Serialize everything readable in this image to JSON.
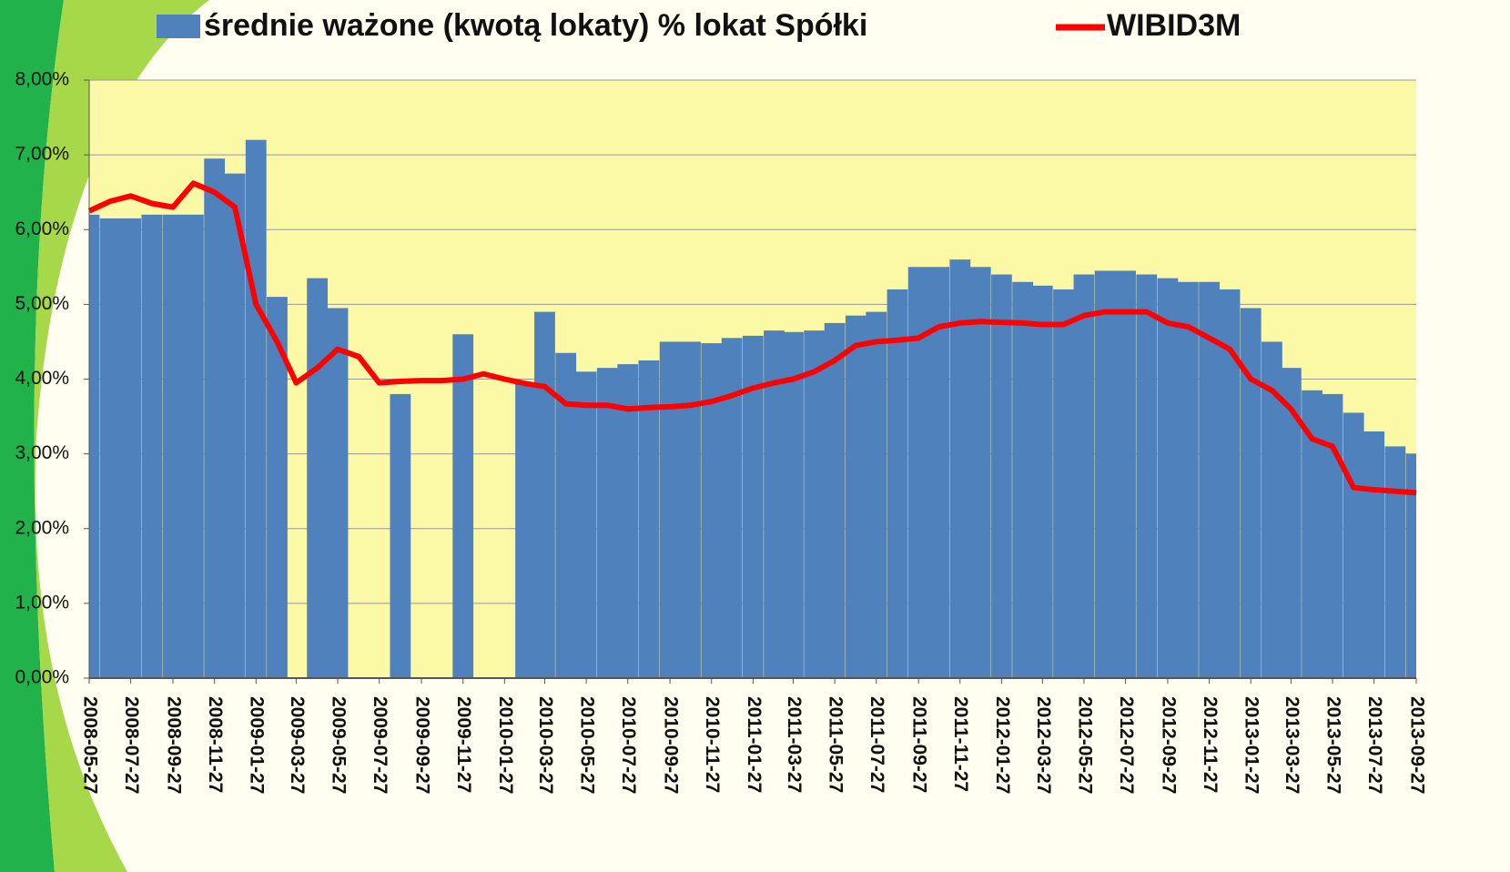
{
  "chart_data": {
    "type": "bar",
    "x": [
      "2008-05-27",
      "2008-06-27",
      "2008-07-27",
      "2008-08-27",
      "2008-09-27",
      "2008-10-27",
      "2008-11-27",
      "2008-12-27",
      "2009-01-27",
      "2009-02-27",
      "2009-03-27",
      "2009-04-27",
      "2009-05-27",
      "2009-06-27",
      "2009-07-27",
      "2009-08-27",
      "2009-09-27",
      "2009-10-27",
      "2009-11-27",
      "2009-12-27",
      "2010-01-27",
      "2010-02-27",
      "2010-03-27",
      "2010-04-27",
      "2010-05-27",
      "2010-06-27",
      "2010-07-27",
      "2010-08-27",
      "2010-09-27",
      "2010-10-27",
      "2010-11-27",
      "2010-12-27",
      "2011-01-27",
      "2011-02-27",
      "2011-03-27",
      "2011-04-27",
      "2011-05-27",
      "2011-06-27",
      "2011-07-27",
      "2011-08-27",
      "2011-09-27",
      "2011-10-27",
      "2011-11-27",
      "2011-12-27",
      "2012-01-27",
      "2012-02-27",
      "2012-03-27",
      "2012-04-27",
      "2012-05-27",
      "2012-06-27",
      "2012-07-27",
      "2012-08-27",
      "2012-09-27",
      "2012-10-27",
      "2012-11-27",
      "2012-12-27",
      "2013-01-27",
      "2013-02-27",
      "2013-03-27",
      "2013-04-27",
      "2013-05-27",
      "2013-06-27",
      "2013-07-27",
      "2013-08-27",
      "2013-09-27"
    ],
    "xlim": [
      "2008-05-27",
      "2013-09-27"
    ],
    "xticks": [
      "2008-05-27",
      "2008-07-27",
      "2008-09-27",
      "2008-11-27",
      "2009-01-27",
      "2009-03-27",
      "2009-05-27",
      "2009-07-27",
      "2009-09-27",
      "2009-11-27",
      "2010-01-27",
      "2010-03-27",
      "2010-05-27",
      "2010-07-27",
      "2010-09-27",
      "2010-11-27",
      "2011-01-27",
      "2011-03-27",
      "2011-05-27",
      "2011-07-27",
      "2011-09-27",
      "2011-11-27",
      "2012-01-27",
      "2012-03-27",
      "2012-05-27",
      "2012-07-27",
      "2012-09-27",
      "2012-11-27",
      "2013-01-27",
      "2013-03-27",
      "2013-05-27",
      "2013-07-27",
      "2013-09-27"
    ],
    "series": [
      {
        "name": "średnie ważone (kwotą lokaty) % lokat Spółki",
        "type": "bar",
        "color": "#4f81bd",
        "values": [
          6.2,
          6.15,
          6.15,
          6.2,
          6.2,
          6.2,
          6.95,
          6.75,
          7.2,
          5.1,
          null,
          5.35,
          4.95,
          null,
          null,
          3.8,
          null,
          null,
          4.6,
          null,
          null,
          3.95,
          4.9,
          4.35,
          4.1,
          4.15,
          4.2,
          4.25,
          4.5,
          4.5,
          4.48,
          4.55,
          4.58,
          4.65,
          4.63,
          4.65,
          4.75,
          4.85,
          4.9,
          5.2,
          5.5,
          5.5,
          5.6,
          5.5,
          5.4,
          5.3,
          5.25,
          5.2,
          5.4,
          5.45,
          5.45,
          5.4,
          5.35,
          5.3,
          5.3,
          5.2,
          4.95,
          4.5,
          4.15,
          3.85,
          3.8,
          3.55,
          3.3,
          3.1,
          3.0
        ]
      },
      {
        "name": "WIBID3M",
        "type": "line",
        "color": "#ff0000",
        "values": [
          6.25,
          6.38,
          6.45,
          6.35,
          6.3,
          6.62,
          6.5,
          6.3,
          5.0,
          4.5,
          3.95,
          4.15,
          4.4,
          4.3,
          3.95,
          3.97,
          3.98,
          3.98,
          4.0,
          4.07,
          4.0,
          3.94,
          3.9,
          3.67,
          3.65,
          3.65,
          3.6,
          3.62,
          3.63,
          3.65,
          3.7,
          3.78,
          3.88,
          3.95,
          4.0,
          4.1,
          4.25,
          4.45,
          4.5,
          4.52,
          4.55,
          4.7,
          4.75,
          4.77,
          4.76,
          4.75,
          4.73,
          4.73,
          4.85,
          4.9,
          4.9,
          4.9,
          4.75,
          4.7,
          4.55,
          4.4,
          4.0,
          3.85,
          3.6,
          3.2,
          3.1,
          2.55,
          2.52,
          2.5,
          2.48
        ]
      }
    ],
    "ylim": [
      0,
      8
    ],
    "yticks": [
      {
        "value": 0,
        "label": "0,00%"
      },
      {
        "value": 1,
        "label": "1,00%"
      },
      {
        "value": 2,
        "label": "2,00%"
      },
      {
        "value": 3,
        "label": "3,00%"
      },
      {
        "value": 4,
        "label": "4,00%"
      },
      {
        "value": 5,
        "label": "5,00%"
      },
      {
        "value": 6,
        "label": "6,00%"
      },
      {
        "value": 7,
        "label": "7,00%"
      },
      {
        "value": 8,
        "label": "8,00%"
      }
    ],
    "grid": true,
    "plot_color": "#fbf8a6"
  }
}
